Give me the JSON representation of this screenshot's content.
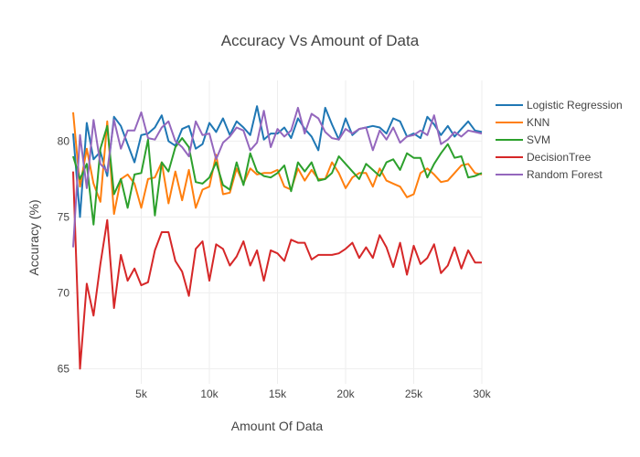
{
  "chart_data": {
    "type": "line",
    "title": "Accuracy Vs Amount of Data",
    "xlabel": "Amount Of Data",
    "ylabel": "Accuracy (%)",
    "xlim": [
      0,
      30000
    ],
    "ylim": [
      64,
      84
    ],
    "xticks": [
      5000,
      10000,
      15000,
      20000,
      25000,
      30000
    ],
    "xtick_labels": [
      "5k",
      "10k",
      "15k",
      "20k",
      "25k",
      "30k"
    ],
    "yticks": [
      65,
      70,
      75,
      80
    ],
    "ytick_labels": [
      "65",
      "70",
      "75",
      "80"
    ],
    "grid": true,
    "legend_position": "right",
    "x": [
      0,
      500,
      1000,
      1500,
      2000,
      2500,
      3000,
      3500,
      4000,
      4500,
      5000,
      5500,
      6000,
      6500,
      7000,
      7500,
      8000,
      8500,
      9000,
      9500,
      10000,
      10500,
      11000,
      11500,
      12000,
      12500,
      13000,
      13500,
      14000,
      14500,
      15000,
      15500,
      16000,
      16500,
      17000,
      17500,
      18000,
      18500,
      19000,
      19500,
      20000,
      20500,
      21000,
      21500,
      22000,
      22500,
      23000,
      23500,
      24000,
      24500,
      25000,
      25500,
      26000,
      26500,
      27000,
      27500,
      28000,
      28500,
      29000,
      29500,
      30000
    ],
    "series": [
      {
        "name": "Logistic Regression",
        "color": "#1f77b4",
        "values": [
          80.5,
          75.0,
          81.2,
          78.8,
          79.3,
          77.7,
          81.6,
          81.0,
          79.8,
          78.6,
          80.4,
          80.5,
          80.9,
          81.7,
          80.0,
          79.7,
          80.8,
          81.0,
          79.5,
          79.8,
          81.2,
          80.6,
          81.5,
          80.4,
          81.3,
          80.9,
          80.4,
          82.3,
          80.1,
          80.5,
          80.5,
          80.9,
          80.2,
          81.5,
          80.8,
          80.3,
          79.4,
          82.2,
          81.1,
          80.1,
          81.5,
          80.4,
          80.8,
          80.9,
          81.0,
          80.9,
          80.5,
          81.5,
          81.3,
          80.3,
          80.5,
          80.2,
          81.6,
          81.1,
          80.4,
          81.0,
          80.3,
          80.8,
          81.3,
          80.7,
          80.6
        ]
      },
      {
        "name": "KNN",
        "color": "#ff7f0e",
        "values": [
          81.9,
          77.0,
          79.5,
          77.2,
          76.0,
          81.3,
          75.2,
          77.5,
          77.8,
          77.2,
          75.6,
          77.5,
          77.6,
          78.6,
          75.9,
          78.0,
          76.1,
          78.1,
          75.6,
          76.8,
          77.0,
          79.1,
          76.5,
          76.6,
          78.2,
          77.2,
          78.2,
          77.8,
          77.9,
          77.9,
          78.1,
          77.0,
          76.8,
          78.2,
          77.4,
          78.1,
          77.5,
          77.5,
          78.6,
          77.9,
          76.9,
          77.6,
          77.9,
          77.9,
          77.0,
          78.2,
          77.4,
          77.2,
          77.0,
          76.3,
          76.5,
          77.9,
          78.2,
          77.8,
          77.3,
          77.4,
          77.9,
          78.4,
          78.5,
          77.9,
          77.8
        ]
      },
      {
        "name": "SVM",
        "color": "#2ca02c",
        "values": [
          79.0,
          77.5,
          78.5,
          74.5,
          79.5,
          81.0,
          76.5,
          77.5,
          75.6,
          77.8,
          77.9,
          80.1,
          75.1,
          78.6,
          78.0,
          79.6,
          80.2,
          79.6,
          77.3,
          77.2,
          77.6,
          78.6,
          77.1,
          76.8,
          78.6,
          77.1,
          79.2,
          78.0,
          77.7,
          77.6,
          77.9,
          78.4,
          76.7,
          78.6,
          78.0,
          78.6,
          77.4,
          77.5,
          77.9,
          79.0,
          78.5,
          78.0,
          77.5,
          78.5,
          78.1,
          77.7,
          78.6,
          78.8,
          78.1,
          79.2,
          78.9,
          78.9,
          77.6,
          78.5,
          79.2,
          79.8,
          78.9,
          79.0,
          77.6,
          77.7,
          77.9
        ]
      },
      {
        "name": "DecisionTree",
        "color": "#d62728",
        "values": [
          78.0,
          65.0,
          70.6,
          68.5,
          71.9,
          74.8,
          69.0,
          72.5,
          70.8,
          71.6,
          70.5,
          70.7,
          72.8,
          74.0,
          74.0,
          72.1,
          71.4,
          69.8,
          72.9,
          73.4,
          70.8,
          73.2,
          72.9,
          71.8,
          72.4,
          73.4,
          71.8,
          72.8,
          70.8,
          72.8,
          72.6,
          72.1,
          73.5,
          73.3,
          73.3,
          72.2,
          72.5,
          72.5,
          72.5,
          72.6,
          72.9,
          73.3,
          72.3,
          73.0,
          72.3,
          73.8,
          73.0,
          71.7,
          73.3,
          71.2,
          73.1,
          71.9,
          72.3,
          73.2,
          71.3,
          71.8,
          73.0,
          71.6,
          72.8,
          72.0,
          72.0
        ]
      },
      {
        "name": "Random Forest",
        "color": "#9467bd",
        "values": [
          73.0,
          80.4,
          76.9,
          81.4,
          78.5,
          78.0,
          81.4,
          79.5,
          80.7,
          80.7,
          81.9,
          80.2,
          80.1,
          80.9,
          81.3,
          80.0,
          79.6,
          79.0,
          81.3,
          80.4,
          80.5,
          78.8,
          79.9,
          80.3,
          80.9,
          80.7,
          79.4,
          79.9,
          82.0,
          79.6,
          80.8,
          80.3,
          80.7,
          82.2,
          80.5,
          81.8,
          81.5,
          80.6,
          80.2,
          80.1,
          80.8,
          80.5,
          80.8,
          80.9,
          79.4,
          80.7,
          80.1,
          80.9,
          79.9,
          80.3,
          80.4,
          80.7,
          80.4,
          81.7,
          79.8,
          80.1,
          80.6,
          80.3,
          80.7,
          80.6,
          80.5
        ]
      }
    ]
  }
}
